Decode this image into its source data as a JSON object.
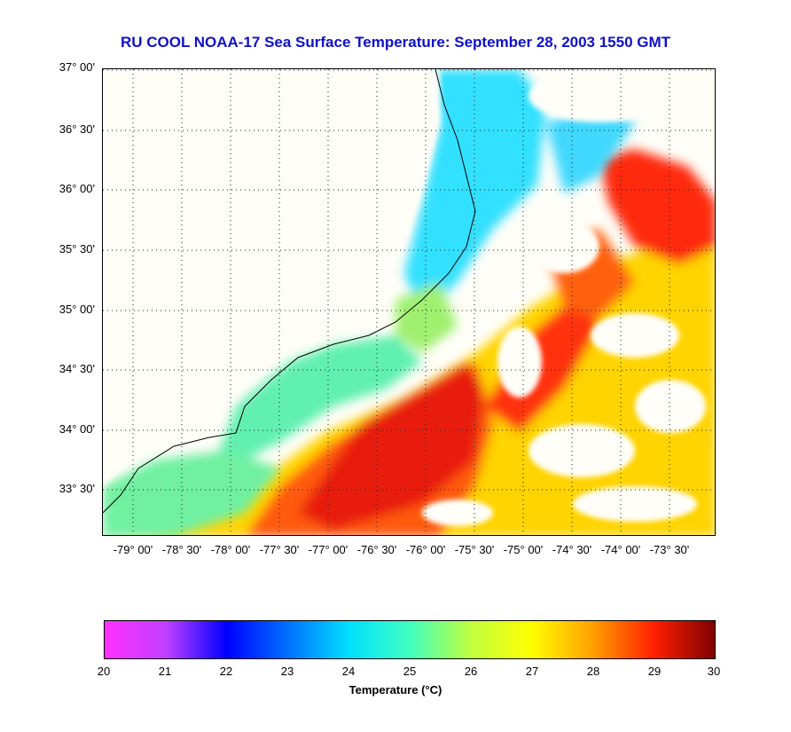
{
  "title": "RU COOL  NOAA-17  Sea Surface Temperature:  September 28, 2003 1550 GMT",
  "map": {
    "lat_labels": [
      "37° 00'",
      "36° 30'",
      "36° 00'",
      "35° 30'",
      "35° 00'",
      "34° 30'",
      "34° 00'",
      "33° 30'"
    ],
    "lon_labels": [
      "-79° 00'",
      "-78° 30'",
      "-78° 00'",
      "-77° 30'",
      "-77° 00'",
      "-76° 30'",
      "-76° 00'",
      "-75° 30'",
      "-75° 00'",
      "-74° 30'",
      "-74° 00'",
      "-73° 30'"
    ]
  },
  "colorbar": {
    "label": "Temperature (°C)",
    "ticks": [
      "20",
      "21",
      "22",
      "23",
      "24",
      "25",
      "26",
      "27",
      "28",
      "29",
      "30"
    ],
    "colors": [
      "#ff30ff",
      "#c040ff",
      "#0000ff",
      "#0070ff",
      "#00e0ff",
      "#40ffc0",
      "#c0ff40",
      "#ffff00",
      "#ffa000",
      "#ff2000",
      "#800000"
    ]
  }
}
